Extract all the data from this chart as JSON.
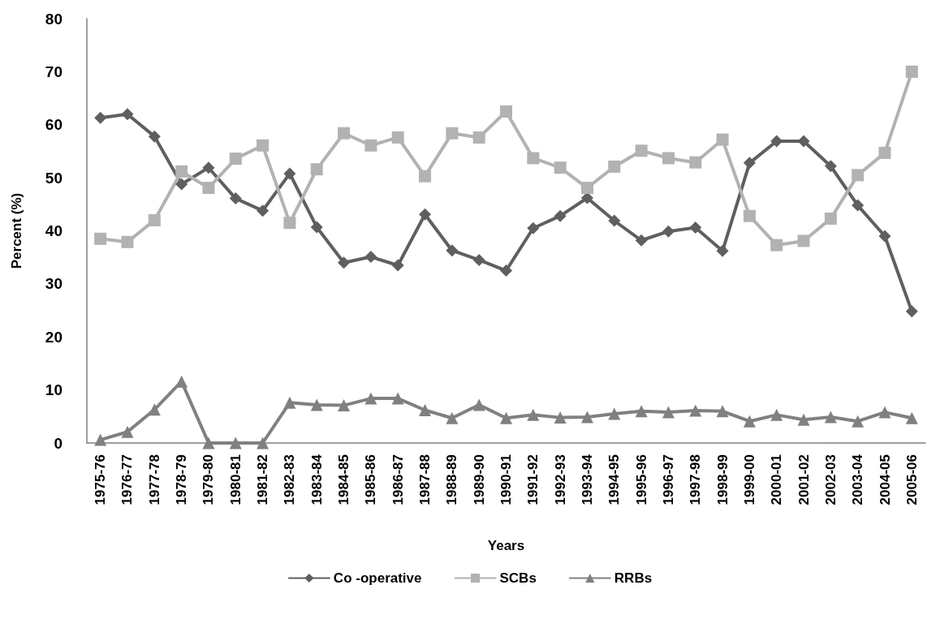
{
  "chart_data": {
    "type": "line",
    "xlabel": "Years",
    "ylabel": "Percent (%)",
    "categories": [
      "1975-76",
      "1976-77",
      "1977-78",
      "1978-79",
      "1979-80",
      "1980-81",
      "1981-82",
      "1982-83",
      "1983-84",
      "1984-85",
      "1985-86",
      "1986-87",
      "1987-88",
      "1988-89",
      "1989-90",
      "1990-91",
      "1991-92",
      "1992-93",
      "1993-94",
      "1994-95",
      "1995-96",
      "1996-97",
      "1997-98",
      "1998-99",
      "1999-00",
      "2000-01",
      "2001-02",
      "2002-03",
      "2003-04",
      "2004-05",
      "2005-06"
    ],
    "series": [
      {
        "name": "Co -operative",
        "color": "#5f5f5f",
        "marker": "diamond",
        "values": [
          61.3,
          62.0,
          57.8,
          48.8,
          51.9,
          46.1,
          43.8,
          50.8,
          40.7,
          34.0,
          35.1,
          33.5,
          43.1,
          36.3,
          34.5,
          32.5,
          40.5,
          42.8,
          46.2,
          41.9,
          38.2,
          39.9,
          40.6,
          36.2,
          52.8,
          56.9,
          56.9,
          52.2,
          44.8,
          39.0,
          24.8
        ]
      },
      {
        "name": "SCBs",
        "color": "#b2b2b2",
        "marker": "square",
        "values": [
          38.5,
          37.9,
          42.0,
          51.2,
          48.1,
          53.6,
          56.1,
          41.5,
          51.6,
          58.4,
          56.1,
          57.6,
          50.3,
          58.4,
          57.6,
          62.5,
          53.7,
          51.9,
          48.1,
          52.1,
          55.1,
          53.7,
          52.9,
          57.2,
          42.8,
          37.3,
          38.1,
          42.3,
          50.5,
          54.7,
          70.0
        ]
      },
      {
        "name": "RRBs",
        "color": "#808080",
        "marker": "triangle",
        "values": [
          0.6,
          2.1,
          6.3,
          11.6,
          0,
          0,
          0,
          7.6,
          7.2,
          7.1,
          8.4,
          8.4,
          6.2,
          4.7,
          7.2,
          4.7,
          5.3,
          4.8,
          4.9,
          5.5,
          6.0,
          5.8,
          6.1,
          6.0,
          4.1,
          5.3,
          4.4,
          4.9,
          4.1,
          5.8,
          4.7
        ]
      }
    ],
    "ylim": [
      0,
      80
    ],
    "yticks": [
      0,
      10,
      20,
      30,
      40,
      50,
      60,
      70,
      80
    ],
    "grid": false,
    "legend": "bottom",
    "line_style": "solid"
  }
}
